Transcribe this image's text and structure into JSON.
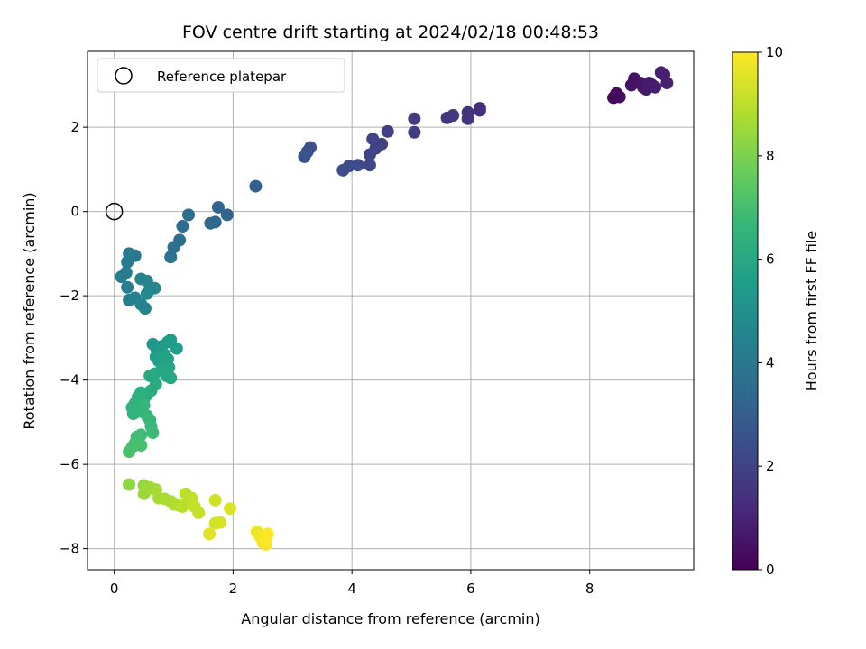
{
  "chart_data": {
    "type": "scatter",
    "title": "FOV centre drift starting at 2024/02/18 00:48:53",
    "xlabel": "Angular distance from reference (arcmin)",
    "ylabel": "Rotation from reference (arcmin)",
    "xlim": [
      -0.45,
      9.75
    ],
    "ylim": [
      -8.5,
      3.8
    ],
    "xticks": [
      0,
      2,
      4,
      6,
      8
    ],
    "yticks": [
      -8,
      -6,
      -4,
      -2,
      0,
      2
    ],
    "grid": true,
    "legend": {
      "placement": "top-left",
      "entries": [
        "Reference platepar"
      ]
    },
    "reference_point": {
      "x": 0,
      "y": 0
    },
    "colorbar": {
      "label": "Hours from first FF file",
      "range": [
        0,
        10
      ],
      "ticks": [
        0,
        2,
        4,
        6,
        8,
        10
      ],
      "colormap": "viridis"
    },
    "colormap_stops": [
      "#440154",
      "#482878",
      "#3e4989",
      "#31688e",
      "#26828e",
      "#1f9e89",
      "#35b779",
      "#6ece58",
      "#b5de2b",
      "#fde725"
    ],
    "series": [
      {
        "points": [
          [
            8.4,
            2.7,
            0.2
          ],
          [
            8.45,
            2.8,
            0.25
          ],
          [
            8.5,
            2.72,
            0.3
          ],
          [
            8.7,
            3.0,
            0.45
          ],
          [
            8.75,
            3.15,
            0.5
          ],
          [
            8.85,
            3.05,
            0.55
          ],
          [
            8.9,
            2.95,
            0.6
          ],
          [
            8.95,
            2.9,
            0.65
          ],
          [
            9.0,
            3.05,
            0.7
          ],
          [
            9.05,
            3.0,
            0.75
          ],
          [
            9.1,
            2.95,
            0.8
          ],
          [
            9.2,
            3.3,
            0.85
          ],
          [
            9.25,
            3.25,
            0.9
          ],
          [
            9.3,
            3.05,
            0.95
          ],
          [
            6.15,
            2.4,
            1.3
          ],
          [
            6.15,
            2.45,
            1.35
          ],
          [
            5.95,
            2.35,
            1.45
          ],
          [
            5.95,
            2.2,
            1.5
          ],
          [
            5.7,
            2.28,
            1.6
          ],
          [
            5.6,
            2.22,
            1.65
          ],
          [
            5.05,
            2.2,
            1.75
          ],
          [
            5.05,
            1.88,
            1.8
          ],
          [
            4.6,
            1.9,
            1.9
          ],
          [
            4.5,
            1.6,
            1.95
          ],
          [
            4.4,
            1.5,
            2.0
          ],
          [
            4.35,
            1.72,
            2.05
          ],
          [
            4.3,
            1.35,
            2.1
          ],
          [
            4.3,
            1.1,
            2.15
          ],
          [
            4.1,
            1.1,
            2.25
          ],
          [
            3.95,
            1.08,
            2.3
          ],
          [
            3.85,
            0.98,
            2.35
          ],
          [
            3.3,
            1.52,
            2.5
          ],
          [
            3.25,
            1.42,
            2.55
          ],
          [
            3.2,
            1.3,
            2.6
          ],
          [
            2.38,
            0.6,
            3.05
          ],
          [
            1.9,
            -0.08,
            3.2
          ],
          [
            1.75,
            0.1,
            3.25
          ],
          [
            1.7,
            -0.25,
            3.3
          ],
          [
            1.62,
            -0.28,
            3.35
          ],
          [
            1.25,
            -0.08,
            3.5
          ],
          [
            1.15,
            -0.35,
            3.55
          ],
          [
            1.1,
            -0.68,
            3.6
          ],
          [
            1.0,
            -0.85,
            3.7
          ],
          [
            0.95,
            -1.08,
            3.75
          ],
          [
            0.35,
            -1.05,
            4.0
          ],
          [
            0.25,
            -1.0,
            4.05
          ],
          [
            0.22,
            -1.2,
            4.1
          ],
          [
            0.2,
            -1.45,
            4.15
          ],
          [
            0.12,
            -1.55,
            4.2
          ],
          [
            0.22,
            -1.8,
            4.25
          ],
          [
            0.25,
            -2.1,
            4.3
          ],
          [
            0.35,
            -2.05,
            4.35
          ],
          [
            0.45,
            -2.2,
            4.4
          ],
          [
            0.52,
            -2.3,
            4.45
          ],
          [
            0.45,
            -1.6,
            4.5
          ],
          [
            0.55,
            -1.65,
            4.55
          ],
          [
            0.6,
            -1.85,
            4.6
          ],
          [
            0.68,
            -1.82,
            4.65
          ],
          [
            0.55,
            -1.95,
            4.7
          ],
          [
            0.65,
            -3.15,
            5.3
          ],
          [
            0.72,
            -3.3,
            5.35
          ],
          [
            0.8,
            -3.2,
            5.4
          ],
          [
            0.9,
            -3.1,
            5.45
          ],
          [
            0.95,
            -3.05,
            5.5
          ],
          [
            1.05,
            -3.25,
            5.55
          ],
          [
            0.7,
            -3.45,
            5.6
          ],
          [
            0.75,
            -3.55,
            5.65
          ],
          [
            0.85,
            -3.4,
            5.7
          ],
          [
            0.9,
            -3.5,
            5.75
          ],
          [
            0.92,
            -3.7,
            5.8
          ],
          [
            0.88,
            -3.9,
            5.85
          ],
          [
            0.95,
            -3.95,
            5.9
          ],
          [
            0.8,
            -3.75,
            5.95
          ],
          [
            0.68,
            -3.85,
            6.0
          ],
          [
            0.6,
            -3.9,
            6.05
          ],
          [
            0.7,
            -4.1,
            6.1
          ],
          [
            0.62,
            -4.25,
            6.15
          ],
          [
            0.55,
            -4.35,
            6.2
          ],
          [
            0.5,
            -4.45,
            6.25
          ],
          [
            0.45,
            -4.3,
            6.3
          ],
          [
            0.4,
            -4.4,
            6.35
          ],
          [
            0.35,
            -4.55,
            6.4
          ],
          [
            0.3,
            -4.65,
            6.45
          ],
          [
            0.32,
            -4.8,
            6.5
          ],
          [
            0.4,
            -4.75,
            6.55
          ],
          [
            0.5,
            -4.6,
            6.6
          ],
          [
            0.55,
            -4.85,
            6.65
          ],
          [
            0.6,
            -4.95,
            6.7
          ],
          [
            0.62,
            -5.1,
            6.75
          ],
          [
            0.65,
            -5.25,
            6.8
          ],
          [
            0.45,
            -5.3,
            6.85
          ],
          [
            0.38,
            -5.35,
            6.9
          ],
          [
            0.35,
            -5.5,
            6.95
          ],
          [
            0.45,
            -5.55,
            7.0
          ],
          [
            0.3,
            -5.6,
            7.05
          ],
          [
            0.25,
            -5.7,
            7.1
          ],
          [
            0.25,
            -6.48,
            8.3
          ],
          [
            0.5,
            -6.5,
            8.4
          ],
          [
            0.55,
            -6.6,
            8.45
          ],
          [
            0.5,
            -6.7,
            8.5
          ],
          [
            0.6,
            -6.55,
            8.55
          ],
          [
            0.7,
            -6.6,
            8.6
          ],
          [
            0.75,
            -6.8,
            8.65
          ],
          [
            0.85,
            -6.82,
            8.7
          ],
          [
            0.95,
            -6.88,
            8.75
          ],
          [
            1.0,
            -6.95,
            8.8
          ],
          [
            1.1,
            -6.98,
            8.85
          ],
          [
            1.15,
            -7.0,
            8.9
          ],
          [
            1.25,
            -6.85,
            8.95
          ],
          [
            1.2,
            -6.7,
            9.0
          ],
          [
            1.3,
            -6.8,
            9.05
          ],
          [
            1.35,
            -7.0,
            9.1
          ],
          [
            1.42,
            -7.15,
            9.15
          ],
          [
            1.7,
            -6.85,
            9.3
          ],
          [
            1.7,
            -7.4,
            9.35
          ],
          [
            1.78,
            -7.38,
            9.4
          ],
          [
            1.95,
            -7.05,
            9.45
          ],
          [
            1.6,
            -7.65,
            9.55
          ],
          [
            2.4,
            -7.6,
            9.75
          ],
          [
            2.45,
            -7.7,
            9.8
          ],
          [
            2.5,
            -7.85,
            9.85
          ],
          [
            2.55,
            -7.9,
            9.9
          ],
          [
            2.55,
            -7.75,
            9.95
          ],
          [
            2.58,
            -7.65,
            10.0
          ]
        ]
      }
    ]
  }
}
